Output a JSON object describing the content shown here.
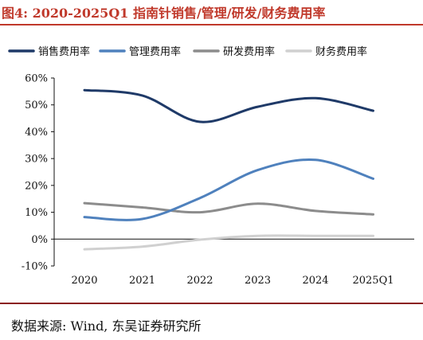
{
  "title": "图4:  2020-2025Q1 指南针销售/管理/研发/财务费用率",
  "source": "数据来源:  Wind,  东吴证券研究所",
  "chart_data": {
    "type": "line",
    "categories": [
      "2020",
      "2021",
      "2022",
      "2023",
      "2024",
      "2025Q1"
    ],
    "y_ticks": [
      "60%",
      "50%",
      "40%",
      "30%",
      "20%",
      "10%",
      "0%",
      "-10%"
    ],
    "ylim": [
      -10,
      60
    ],
    "grid": false,
    "legend_position": "top",
    "series": [
      {
        "name": "销售费用率",
        "color": "#1f3a68",
        "values": [
          55.5,
          53.5,
          43.7,
          49.3,
          52.5,
          47.8
        ]
      },
      {
        "name": "管理费用率",
        "color": "#4f81bd",
        "values": [
          8.2,
          7.5,
          15.3,
          25.7,
          29.5,
          22.5
        ]
      },
      {
        "name": "研发费用率",
        "color": "#8c8c8c",
        "values": [
          13.4,
          11.8,
          10.0,
          13.2,
          10.5,
          9.2
        ]
      },
      {
        "name": "财务费用率",
        "color": "#d0d0d0",
        "values": [
          -3.8,
          -2.8,
          -0.2,
          1.2,
          1.2,
          1.2
        ]
      }
    ]
  }
}
